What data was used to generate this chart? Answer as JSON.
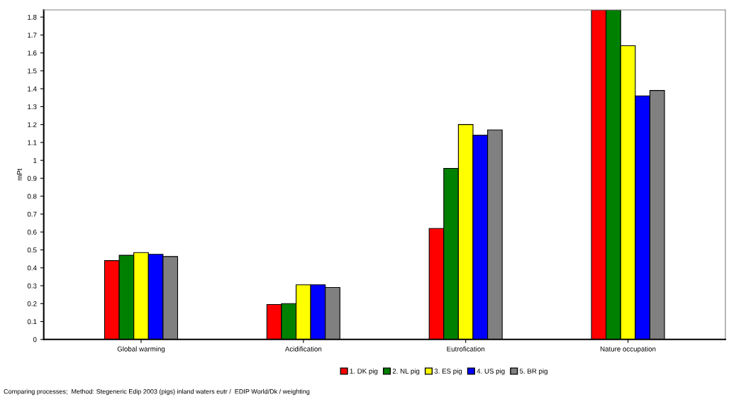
{
  "chart_data": {
    "type": "bar",
    "ylabel": "mPt",
    "categories": [
      "Global warming",
      "Acidification",
      "Eutrofication",
      "Nature occupation"
    ],
    "series": [
      {
        "name": "1. DK pig",
        "color": "#ff0000",
        "values": [
          0.44,
          0.195,
          0.62,
          1.84
        ]
      },
      {
        "name": "2. NL pig",
        "color": "#008000",
        "values": [
          0.47,
          0.2,
          0.955,
          1.84
        ]
      },
      {
        "name": "3. ES pig",
        "color": "#ffff00",
        "values": [
          0.485,
          0.305,
          1.2,
          1.64
        ]
      },
      {
        "name": "4. US pig",
        "color": "#0000ff",
        "values": [
          0.475,
          0.305,
          1.14,
          1.36
        ]
      },
      {
        "name": "5. BR pig",
        "color": "#808080",
        "values": [
          0.463,
          0.29,
          1.17,
          1.39
        ]
      }
    ],
    "ylim": [
      0,
      1.84
    ],
    "yticks": [
      0,
      0.1,
      0.2,
      0.3,
      0.4,
      0.5,
      0.6,
      0.7,
      0.8,
      0.9,
      1,
      1.1,
      1.2,
      1.3,
      1.4,
      1.5,
      1.6,
      1.7,
      1.8
    ],
    "grid": false,
    "legend": "bottom right",
    "annotations": [
      "Comparing processes;  Method: Stegeneric Edip 2003 (pigs) inland waters eutr /  EDIP World/Dk / weighting"
    ]
  }
}
